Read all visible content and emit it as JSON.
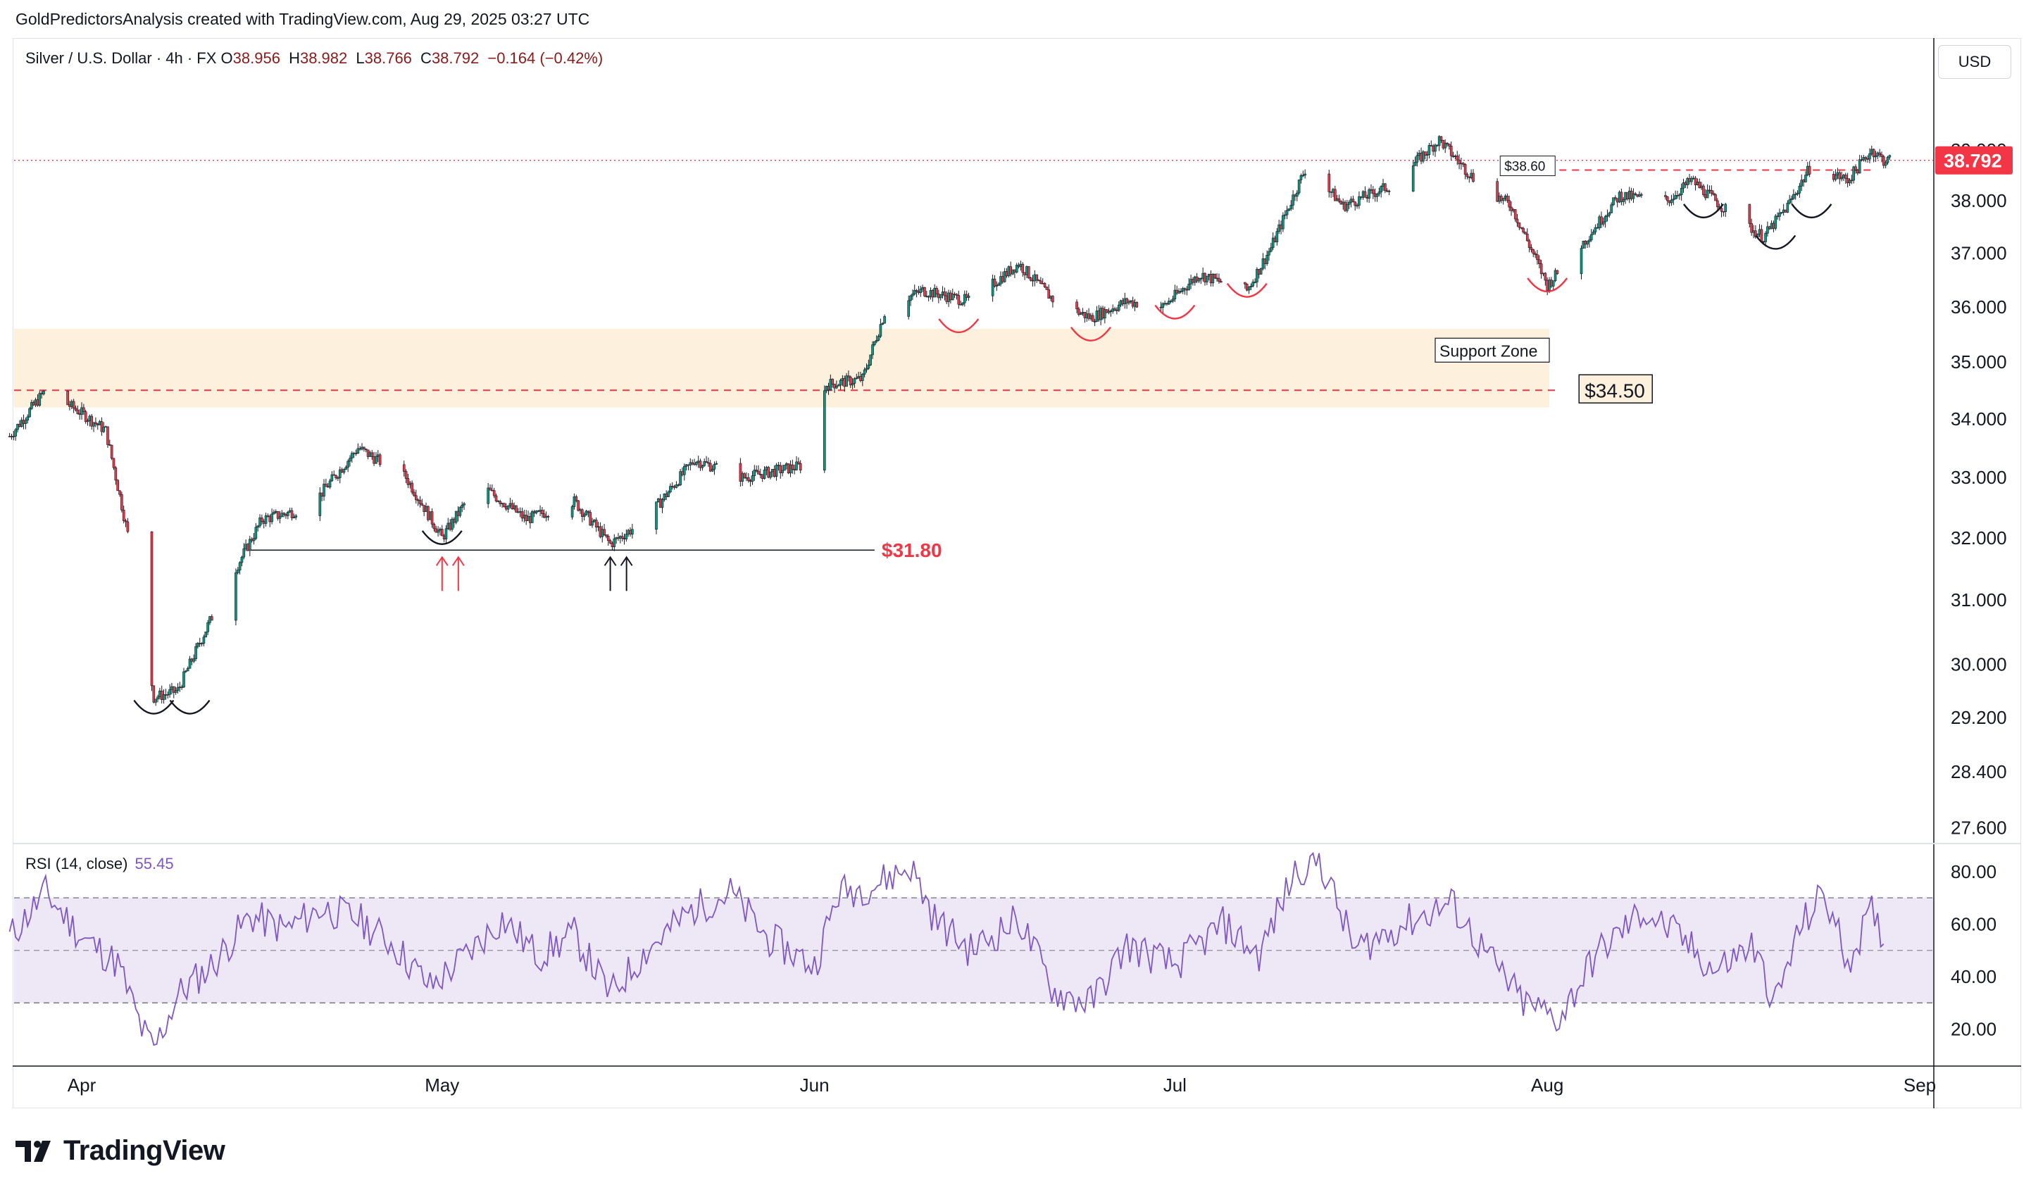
{
  "attribution": "GoldPredictorsAnalysis created with TradingView.com, Aug 29, 2025 03:27 UTC",
  "symbol": {
    "title": "Silver / U.S. Dollar · 4h · FX",
    "open_label": "O",
    "open": "38.956",
    "high_label": "H",
    "high": "38.982",
    "low_label": "L",
    "low": "38.766",
    "close_label": "C",
    "close": "38.792",
    "change": "−0.164 (−0.42%)"
  },
  "currency_button": "USD",
  "last_price_label": "38.792",
  "rsi_header": {
    "label": "RSI (14, close)",
    "value": "55.45"
  },
  "brand": "TradingView",
  "colors": {
    "up": "#089981",
    "down": "#f23645",
    "rsi_line": "#7e57c2",
    "rsi_band": "#ede7f6",
    "support_zone": "#fdf0dd",
    "annotation_red": "#f23645",
    "price_line": "#f23645"
  },
  "chart_data": {
    "type": "candlestick",
    "timeframe": "4h",
    "x_ticks": [
      "Apr",
      "May",
      "Jun",
      "Jul",
      "Aug",
      "Sep"
    ],
    "x_range": [
      "2025-03-26",
      "2025-09-01"
    ],
    "price_axis": {
      "scale": "log",
      "ticks": [
        "39.000",
        "38.000",
        "37.000",
        "36.000",
        "35.000",
        "34.000",
        "33.000",
        "32.000",
        "31.000",
        "30.000",
        "29.200",
        "28.400",
        "27.600"
      ],
      "range": [
        27.4,
        40.7
      ]
    },
    "price_path": [
      [
        "2025-03-26",
        33.7
      ],
      [
        "2025-03-29",
        34.5
      ],
      [
        "2025-04-01",
        34.1
      ],
      [
        "2025-04-03",
        33.8
      ],
      [
        "2025-04-05",
        31.9
      ],
      [
        "2025-04-07",
        29.5
      ],
      [
        "2025-04-09",
        29.6
      ],
      [
        "2025-04-11",
        30.4
      ],
      [
        "2025-04-13",
        31.2
      ],
      [
        "2025-04-16",
        32.3
      ],
      [
        "2025-04-20",
        32.5
      ],
      [
        "2025-04-24",
        33.5
      ],
      [
        "2025-04-28",
        33.0
      ],
      [
        "2025-05-01",
        32.0
      ],
      [
        "2025-05-04",
        32.9
      ],
      [
        "2025-05-08",
        32.3
      ],
      [
        "2025-05-12",
        32.6
      ],
      [
        "2025-05-15",
        31.9
      ],
      [
        "2025-05-18",
        32.3
      ],
      [
        "2025-05-22",
        33.3
      ],
      [
        "2025-05-26",
        33.0
      ],
      [
        "2025-05-31",
        33.2
      ],
      [
        "2025-06-02",
        34.6
      ],
      [
        "2025-06-05",
        34.7
      ],
      [
        "2025-06-07",
        36.0
      ],
      [
        "2025-06-10",
        36.3
      ],
      [
        "2025-06-14",
        36.1
      ],
      [
        "2025-06-18",
        36.8
      ],
      [
        "2025-06-21",
        36.1
      ],
      [
        "2025-06-24",
        35.8
      ],
      [
        "2025-06-27",
        36.1
      ],
      [
        "2025-06-30",
        36.0
      ],
      [
        "2025-07-03",
        36.6
      ],
      [
        "2025-07-07",
        36.3
      ],
      [
        "2025-07-09",
        37.1
      ],
      [
        "2025-07-12",
        38.7
      ],
      [
        "2025-07-15",
        37.9
      ],
      [
        "2025-07-19",
        38.3
      ],
      [
        "2025-07-23",
        39.2
      ],
      [
        "2025-07-26",
        38.4
      ],
      [
        "2025-07-29",
        37.9
      ],
      [
        "2025-08-01",
        36.4
      ],
      [
        "2025-08-04",
        37.2
      ],
      [
        "2025-08-07",
        38.1
      ],
      [
        "2025-08-11",
        38.0
      ],
      [
        "2025-08-13",
        38.4
      ],
      [
        "2025-08-16",
        37.8
      ],
      [
        "2025-08-19",
        37.3
      ],
      [
        "2025-08-21",
        37.9
      ],
      [
        "2025-08-23",
        38.7
      ],
      [
        "2025-08-26",
        38.4
      ],
      [
        "2025-08-28",
        39.0
      ],
      [
        "2025-08-29",
        38.792
      ]
    ],
    "support_zone": {
      "from": 34.2,
      "to": 35.6,
      "label": "Support Zone"
    },
    "horizontal_levels": [
      {
        "label": "$34.50",
        "price": 34.5,
        "from": "2025-03-26",
        "to": "2025-08-02",
        "style": "dashed-red"
      },
      {
        "label": "$31.80",
        "price": 31.8,
        "from": "2025-04-15",
        "to": "2025-06-06",
        "style": "solid-black"
      },
      {
        "label": "$38.60",
        "price": 38.6,
        "from": "2025-08-02",
        "to": "2025-08-28",
        "style": "dashed-red"
      }
    ],
    "last_price": 38.792,
    "rsi": {
      "name": "RSI (14, close)",
      "y_ticks": [
        "80.00",
        "60.00",
        "40.00",
        "20.00"
      ],
      "range": [
        7,
        88
      ],
      "bands": [
        30,
        50,
        70
      ],
      "last": 55.45,
      "path": [
        [
          "2025-03-26",
          55
        ],
        [
          "2025-03-29",
          72
        ],
        [
          "2025-04-01",
          55
        ],
        [
          "2025-04-04",
          45
        ],
        [
          "2025-04-06",
          20
        ],
        [
          "2025-04-07",
          12
        ],
        [
          "2025-04-09",
          33
        ],
        [
          "2025-04-12",
          45
        ],
        [
          "2025-04-15",
          63
        ],
        [
          "2025-04-18",
          58
        ],
        [
          "2025-04-21",
          66
        ],
        [
          "2025-04-24",
          62
        ],
        [
          "2025-04-27",
          52
        ],
        [
          "2025-04-30",
          36
        ],
        [
          "2025-05-03",
          48
        ],
        [
          "2025-05-06",
          62
        ],
        [
          "2025-05-09",
          48
        ],
        [
          "2025-05-12",
          56
        ],
        [
          "2025-05-15",
          33
        ],
        [
          "2025-05-18",
          50
        ],
        [
          "2025-05-22",
          66
        ],
        [
          "2025-05-25",
          72
        ],
        [
          "2025-05-28",
          55
        ],
        [
          "2025-06-01",
          44
        ],
        [
          "2025-06-03",
          72
        ],
        [
          "2025-06-06",
          75
        ],
        [
          "2025-06-09",
          82
        ],
        [
          "2025-06-11",
          62
        ],
        [
          "2025-06-14",
          50
        ],
        [
          "2025-06-18",
          62
        ],
        [
          "2025-06-21",
          34
        ],
        [
          "2025-06-24",
          30
        ],
        [
          "2025-06-27",
          52
        ],
        [
          "2025-07-01",
          44
        ],
        [
          "2025-07-05",
          60
        ],
        [
          "2025-07-08",
          48
        ],
        [
          "2025-07-11",
          80
        ],
        [
          "2025-07-13",
          85
        ],
        [
          "2025-07-16",
          50
        ],
        [
          "2025-07-20",
          60
        ],
        [
          "2025-07-24",
          68
        ],
        [
          "2025-07-27",
          48
        ],
        [
          "2025-07-30",
          30
        ],
        [
          "2025-08-02",
          24
        ],
        [
          "2025-08-05",
          48
        ],
        [
          "2025-08-09",
          65
        ],
        [
          "2025-08-12",
          55
        ],
        [
          "2025-08-15",
          42
        ],
        [
          "2025-08-18",
          52
        ],
        [
          "2025-08-20",
          30
        ],
        [
          "2025-08-22",
          58
        ],
        [
          "2025-08-24",
          72
        ],
        [
          "2025-08-26",
          46
        ],
        [
          "2025-08-28",
          64
        ],
        [
          "2025-08-29",
          55.45
        ]
      ]
    }
  }
}
